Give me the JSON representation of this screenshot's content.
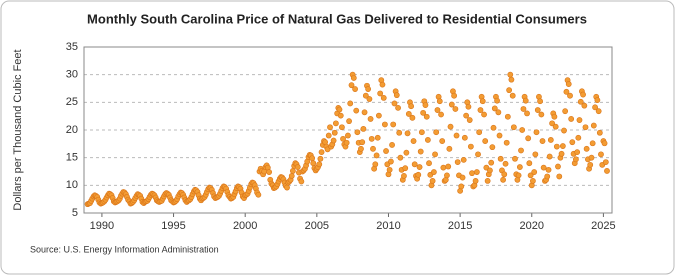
{
  "chart_data": {
    "type": "scatter",
    "title": "Monthly South Carolina Price of Natural Gas Delivered to Residential Consumers",
    "y_label": "Dollars per Thousand Cubic Feet",
    "source": "Source: U.S. Energy Information Administration",
    "color": "#f39c33",
    "grid": true,
    "xlim": [
      1988.75,
      2025.6
    ],
    "xticks": [
      1990,
      1995,
      2000,
      2005,
      2010,
      2015,
      2020,
      2025
    ],
    "ylim": [
      5,
      35
    ],
    "yticks": [
      5,
      10,
      15,
      20,
      25,
      30,
      35
    ],
    "x": [
      1989.0,
      1989.08,
      1989.17,
      1989.25,
      1989.33,
      1989.42,
      1989.5,
      1989.58,
      1989.67,
      1989.75,
      1989.83,
      1989.92,
      1990.0,
      1990.08,
      1990.17,
      1990.25,
      1990.33,
      1990.42,
      1990.5,
      1990.58,
      1990.67,
      1990.75,
      1990.83,
      1990.92,
      1991.0,
      1991.08,
      1991.17,
      1991.25,
      1991.33,
      1991.42,
      1991.5,
      1991.58,
      1991.67,
      1991.75,
      1991.83,
      1991.92,
      1992.0,
      1992.08,
      1992.17,
      1992.25,
      1992.33,
      1992.42,
      1992.5,
      1992.58,
      1992.67,
      1992.75,
      1992.83,
      1992.92,
      1993.0,
      1993.08,
      1993.17,
      1993.25,
      1993.33,
      1993.42,
      1993.5,
      1993.58,
      1993.67,
      1993.75,
      1993.83,
      1993.92,
      1994.0,
      1994.08,
      1994.17,
      1994.25,
      1994.33,
      1994.42,
      1994.5,
      1994.58,
      1994.67,
      1994.75,
      1994.83,
      1994.92,
      1995.0,
      1995.08,
      1995.17,
      1995.25,
      1995.33,
      1995.42,
      1995.5,
      1995.58,
      1995.67,
      1995.75,
      1995.83,
      1995.92,
      1996.0,
      1996.08,
      1996.17,
      1996.25,
      1996.33,
      1996.42,
      1996.5,
      1996.58,
      1996.67,
      1996.75,
      1996.83,
      1996.92,
      1997.0,
      1997.08,
      1997.17,
      1997.25,
      1997.33,
      1997.42,
      1997.5,
      1997.58,
      1997.67,
      1997.75,
      1997.83,
      1997.92,
      1998.0,
      1998.08,
      1998.17,
      1998.25,
      1998.33,
      1998.42,
      1998.5,
      1998.58,
      1998.67,
      1998.75,
      1998.83,
      1998.92,
      1999.0,
      1999.08,
      1999.17,
      1999.25,
      1999.33,
      1999.42,
      1999.5,
      1999.58,
      1999.67,
      1999.75,
      1999.83,
      1999.92,
      2000.0,
      2000.08,
      2000.17,
      2000.25,
      2000.33,
      2000.42,
      2000.5,
      2000.58,
      2000.67,
      2000.75,
      2000.83,
      2000.92,
      2001.0,
      2001.08,
      2001.17,
      2001.25,
      2001.33,
      2001.42,
      2001.5,
      2001.58,
      2001.67,
      2001.75,
      2001.83,
      2001.92,
      2002.0,
      2002.08,
      2002.17,
      2002.25,
      2002.33,
      2002.42,
      2002.5,
      2002.58,
      2002.67,
      2002.75,
      2002.83,
      2002.92,
      2003.0,
      2003.08,
      2003.17,
      2003.25,
      2003.33,
      2003.42,
      2003.5,
      2003.58,
      2003.67,
      2003.75,
      2003.83,
      2003.92,
      2004.0,
      2004.08,
      2004.17,
      2004.25,
      2004.33,
      2004.42,
      2004.5,
      2004.58,
      2004.67,
      2004.75,
      2004.83,
      2004.92,
      2005.0,
      2005.08,
      2005.17,
      2005.25,
      2005.33,
      2005.42,
      2005.5,
      2005.58,
      2005.67,
      2005.75,
      2005.83,
      2005.92,
      2006.0,
      2006.08,
      2006.17,
      2006.25,
      2006.33,
      2006.42,
      2006.5,
      2006.58,
      2006.67,
      2006.75,
      2006.83,
      2006.92,
      2007.0,
      2007.08,
      2007.17,
      2007.25,
      2007.33,
      2007.42,
      2007.5,
      2007.58,
      2007.67,
      2007.75,
      2007.83,
      2007.92,
      2008.0,
      2008.08,
      2008.17,
      2008.25,
      2008.33,
      2008.42,
      2008.5,
      2008.58,
      2008.67,
      2008.75,
      2008.83,
      2008.92,
      2009.0,
      2009.08,
      2009.17,
      2009.25,
      2009.33,
      2009.42,
      2009.5,
      2009.58,
      2009.67,
      2009.75,
      2009.83,
      2009.92,
      2010.0,
      2010.08,
      2010.17,
      2010.25,
      2010.33,
      2010.42,
      2010.5,
      2010.58,
      2010.67,
      2010.75,
      2010.83,
      2010.92,
      2011.0,
      2011.08,
      2011.17,
      2011.25,
      2011.33,
      2011.42,
      2011.5,
      2011.58,
      2011.67,
      2011.75,
      2011.83,
      2011.92,
      2012.0,
      2012.08,
      2012.17,
      2012.25,
      2012.33,
      2012.42,
      2012.5,
      2012.58,
      2012.67,
      2012.75,
      2012.83,
      2012.92,
      2013.0,
      2013.08,
      2013.17,
      2013.25,
      2013.33,
      2013.42,
      2013.5,
      2013.58,
      2013.67,
      2013.75,
      2013.83,
      2013.92,
      2014.0,
      2014.08,
      2014.17,
      2014.25,
      2014.33,
      2014.42,
      2014.5,
      2014.58,
      2014.67,
      2014.75,
      2014.83,
      2014.92,
      2015.0,
      2015.08,
      2015.17,
      2015.25,
      2015.33,
      2015.42,
      2015.5,
      2015.58,
      2015.67,
      2015.75,
      2015.83,
      2015.92,
      2016.0,
      2016.08,
      2016.17,
      2016.25,
      2016.33,
      2016.42,
      2016.5,
      2016.58,
      2016.67,
      2016.75,
      2016.83,
      2016.92,
      2017.0,
      2017.08,
      2017.17,
      2017.25,
      2017.33,
      2017.42,
      2017.5,
      2017.58,
      2017.67,
      2017.75,
      2017.83,
      2017.92,
      2018.0,
      2018.08,
      2018.17,
      2018.25,
      2018.33,
      2018.42,
      2018.5,
      2018.58,
      2018.67,
      2018.75,
      2018.83,
      2018.92,
      2019.0,
      2019.08,
      2019.17,
      2019.25,
      2019.33,
      2019.42,
      2019.5,
      2019.58,
      2019.67,
      2019.75,
      2019.83,
      2019.92,
      2020.0,
      2020.08,
      2020.17,
      2020.25,
      2020.33,
      2020.42,
      2020.5,
      2020.58,
      2020.67,
      2020.75,
      2020.83,
      2020.92,
      2021.0,
      2021.08,
      2021.17,
      2021.25,
      2021.33,
      2021.42,
      2021.5,
      2021.58,
      2021.67,
      2021.75,
      2021.83,
      2021.92,
      2022.0,
      2022.08,
      2022.17,
      2022.25,
      2022.33,
      2022.42,
      2022.5,
      2022.58,
      2022.67,
      2022.75,
      2022.83,
      2022.92,
      2023.0,
      2023.08,
      2023.17,
      2023.25,
      2023.33,
      2023.42,
      2023.5,
      2023.58,
      2023.67,
      2023.75,
      2023.83,
      2023.92,
      2024.0,
      2024.08,
      2024.17,
      2024.25,
      2024.33,
      2024.42,
      2024.5,
      2024.58,
      2024.67,
      2024.75,
      2024.83,
      2024.92,
      2025.0,
      2025.08,
      2025.17,
      2025.25
    ],
    "values": [
      6.6,
      6.7,
      6.8,
      7.2,
      7.6,
      8.0,
      8.2,
      8.1,
      7.9,
      7.4,
      6.9,
      6.7,
      6.8,
      6.9,
      7.1,
      7.4,
      7.8,
      8.2,
      8.5,
      8.4,
      8.2,
      7.7,
      7.1,
      6.9,
      7.0,
      7.1,
      7.3,
      7.6,
      8.1,
      8.5,
      8.8,
      8.7,
      8.4,
      7.9,
      7.4,
      7.1,
      6.7,
      6.8,
      7.0,
      7.3,
      7.7,
      8.1,
      8.4,
      8.3,
      8.1,
      7.6,
      7.0,
      6.8,
      7.0,
      7.1,
      7.2,
      7.5,
      7.9,
      8.3,
      8.5,
      8.4,
      8.2,
      7.8,
      7.3,
      7.1,
      7.0,
      7.1,
      7.2,
      7.6,
      8.0,
      8.4,
      8.6,
      8.5,
      8.3,
      7.8,
      7.3,
      7.1,
      6.9,
      7.0,
      7.2,
      7.5,
      8.0,
      8.4,
      8.7,
      8.6,
      8.3,
      7.8,
      7.3,
      7.0,
      7.2,
      7.3,
      7.5,
      7.9,
      8.4,
      8.9,
      9.2,
      9.1,
      8.8,
      8.2,
      7.6,
      7.3,
      7.6,
      7.7,
      7.9,
      8.3,
      8.8,
      9.3,
      9.6,
      9.5,
      9.2,
      8.6,
      8.0,
      7.7,
      7.8,
      7.9,
      8.1,
      8.5,
      9.0,
      9.5,
      9.8,
      9.7,
      9.4,
      8.8,
      8.2,
      7.9,
      7.6,
      7.7,
      7.9,
      8.4,
      8.9,
      9.5,
      9.8,
      9.7,
      9.4,
      8.7,
      8.0,
      7.7,
      8.2,
      8.3,
      8.5,
      9.0,
      9.6,
      10.2,
      10.5,
      10.4,
      10.0,
      9.4,
      8.7,
      8.3,
      12.5,
      13.0,
      12.6,
      12.0,
      12.5,
      13.3,
      13.6,
      13.2,
      12.4,
      11.0,
      10.3,
      10.0,
      9.5,
      9.6,
      9.8,
      10.2,
      10.7,
      11.2,
      11.5,
      11.4,
      11.1,
      10.5,
      9.9,
      9.6,
      10.5,
      10.7,
      11.0,
      11.7,
      12.6,
      13.5,
      14.0,
      13.8,
      13.3,
      12.3,
      11.2,
      10.7,
      12.5,
      12.7,
      13.0,
      13.6,
      14.3,
      15.1,
      15.5,
      15.4,
      14.9,
      14.0,
      13.1,
      12.7,
      13.0,
      13.3,
      13.8,
      14.8,
      16.0,
      17.3,
      18.0,
      17.8,
      17.0,
      16.5,
      19.0,
      20.5,
      17.0,
      17.4,
      18.1,
      19.5,
      21.2,
      23.0,
      24.0,
      23.7,
      22.6,
      20.5,
      18.4,
      17.4,
      17.0,
      17.7,
      19.0,
      21.6,
      24.8,
      28.1,
      30.0,
      29.4,
      27.4,
      23.5,
      19.6,
      17.7,
      16.0,
      16.6,
      17.8,
      20.2,
      23.2,
      26.2,
      28.0,
      27.4,
      25.6,
      22.0,
      18.4,
      16.6,
      13.0,
      13.8,
      15.4,
      18.6,
      22.6,
      26.6,
      29.0,
      28.2,
      25.8,
      21.0,
      16.2,
      13.8,
      12.0,
      12.8,
      14.3,
      17.3,
      21.0,
      24.8,
      27.0,
      26.3,
      24.0,
      19.5,
      15.0,
      12.8,
      11.0,
      11.7,
      13.1,
      15.9,
      19.4,
      22.9,
      25.0,
      24.3,
      22.2,
      18.0,
      13.8,
      11.7,
      11.2,
      11.9,
      13.3,
      16.1,
      19.6,
      23.1,
      25.2,
      24.5,
      22.4,
      18.2,
      14.0,
      11.9,
      10.0,
      10.8,
      12.4,
      15.6,
      19.6,
      23.6,
      26.0,
      25.2,
      22.8,
      18.0,
      13.2,
      10.8,
      11.0,
      11.8,
      13.4,
      16.6,
      20.6,
      24.6,
      27.0,
      26.2,
      23.8,
      19.0,
      14.2,
      11.8,
      9.0,
      9.8,
      11.4,
      14.6,
      18.6,
      22.6,
      25.0,
      24.2,
      21.8,
      17.0,
      12.2,
      9.8,
      10.0,
      10.8,
      12.4,
      15.6,
      19.6,
      23.6,
      26.0,
      25.2,
      22.8,
      18.0,
      13.2,
      10.8,
      12.0,
      12.7,
      14.1,
      16.9,
      20.4,
      23.9,
      26.0,
      25.3,
      23.2,
      19.0,
      14.8,
      12.7,
      11.0,
      12.0,
      13.9,
      17.7,
      22.4,
      27.2,
      30.0,
      29.1,
      26.2,
      20.5,
      14.8,
      12.0,
      11.0,
      11.8,
      13.3,
      16.3,
      20.0,
      23.8,
      26.0,
      25.3,
      23.0,
      18.5,
      14.0,
      11.8,
      10.0,
      10.8,
      12.4,
      15.6,
      19.6,
      23.6,
      26.0,
      25.2,
      22.8,
      18.0,
      13.2,
      10.8,
      11.0,
      11.6,
      12.8,
      15.2,
      18.2,
      21.2,
      23.0,
      22.4,
      20.6,
      17.0,
      13.4,
      11.6,
      15.0,
      15.7,
      17.1,
      19.9,
      23.4,
      26.9,
      29.0,
      28.3,
      26.2,
      22.0,
      17.8,
      15.7,
      14.0,
      14.7,
      16.0,
      18.6,
      21.8,
      25.1,
      27.0,
      26.4,
      24.4,
      20.5,
      16.6,
      14.7,
      13.0,
      13.7,
      15.0,
      17.6,
      20.8,
      24.1,
      26.0,
      25.4,
      23.4,
      19.5,
      15.6,
      13.7,
      18.0,
      17.6,
      14.2,
      12.6
    ]
  }
}
